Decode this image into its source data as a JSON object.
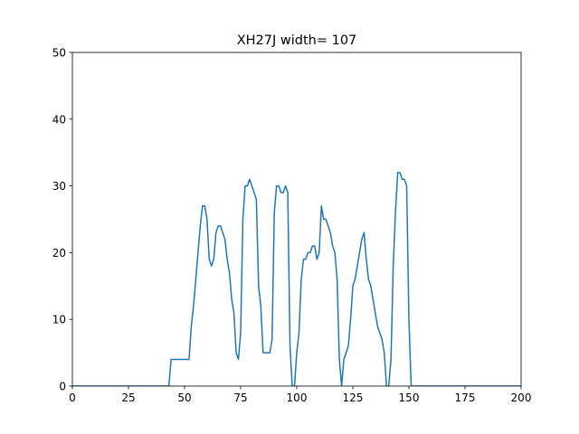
{
  "chart_data": {
    "type": "line",
    "title": "XH27J width= 107",
    "xlabel": "",
    "ylabel": "",
    "xlim": [
      0,
      200
    ],
    "ylim": [
      0,
      50
    ],
    "grid": false,
    "xticks": [
      "0",
      "25",
      "50",
      "75",
      "100",
      "125",
      "150",
      "175",
      "200"
    ],
    "yticks": [
      "0",
      "10",
      "20",
      "30",
      "40",
      "50"
    ],
    "series": [
      {
        "color": "#1f77b4",
        "x": [
          0,
          43,
          44,
          45,
          46,
          47,
          48,
          49,
          50,
          51,
          52,
          53,
          54,
          55,
          56,
          57,
          58,
          59,
          60,
          61,
          62,
          63,
          64,
          65,
          66,
          67,
          68,
          69,
          70,
          71,
          72,
          73,
          74,
          75,
          76,
          77,
          78,
          79,
          80,
          81,
          82,
          83,
          84,
          85,
          86,
          87,
          88,
          89,
          90,
          91,
          92,
          93,
          94,
          95,
          96,
          97,
          98,
          99,
          100,
          101,
          102,
          103,
          104,
          105,
          106,
          107,
          108,
          109,
          110,
          111,
          112,
          113,
          114,
          115,
          116,
          117,
          118,
          119,
          120,
          121,
          122,
          123,
          124,
          125,
          126,
          127,
          128,
          129,
          130,
          131,
          132,
          133,
          134,
          135,
          136,
          137,
          138,
          139,
          140,
          141,
          142,
          143,
          144,
          145,
          146,
          147,
          148,
          149,
          150,
          151,
          200
        ],
        "y": [
          0,
          0,
          4,
          4,
          4,
          4,
          4,
          4,
          4,
          4,
          4,
          9,
          12,
          16,
          20,
          24,
          27,
          27,
          25,
          19,
          18,
          19,
          23,
          24,
          24,
          23,
          22,
          19,
          17,
          13,
          11,
          5,
          4,
          8,
          25,
          30,
          30,
          31,
          30,
          29,
          28,
          15,
          12,
          5,
          5,
          5,
          5,
          7,
          26,
          30,
          30,
          29,
          29,
          30,
          29,
          6,
          0,
          0,
          5,
          8,
          16,
          19,
          19,
          20,
          20,
          21,
          21,
          19,
          20,
          27,
          25,
          25,
          24,
          23,
          21,
          20,
          16,
          4,
          0,
          4,
          5,
          6,
          10,
          15,
          16,
          18,
          20,
          22,
          23,
          19,
          16,
          15,
          13,
          11,
          9,
          8,
          7,
          5,
          0,
          0,
          4,
          18,
          26,
          32,
          32,
          31,
          31,
          30,
          10,
          0,
          0
        ]
      }
    ]
  }
}
